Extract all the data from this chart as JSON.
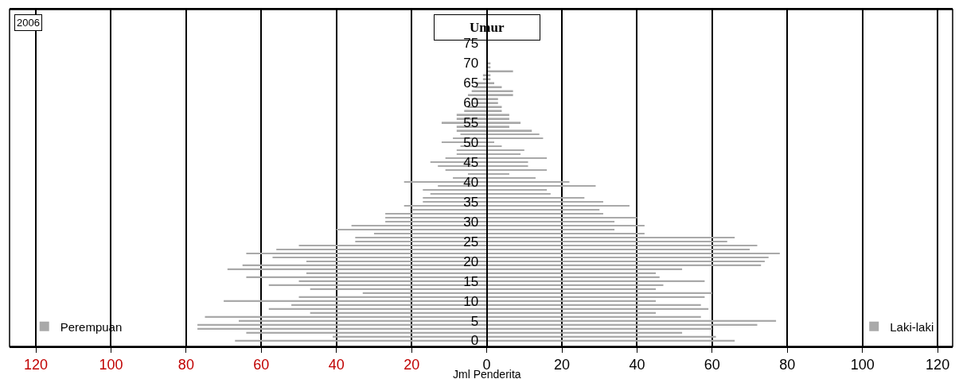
{
  "chart_data": {
    "type": "bar",
    "orientation": "horizontal",
    "stacked": true,
    "title": "2006",
    "ylabel": "Umur",
    "xlabel": "Jml Penderita",
    "categories": [
      null,
      null,
      "75",
      null,
      null,
      null,
      null,
      "70",
      null,
      null,
      null,
      null,
      "65",
      null,
      null,
      null,
      null,
      "60",
      null,
      null,
      null,
      null,
      "55",
      null,
      null,
      null,
      null,
      "50",
      null,
      null,
      null,
      null,
      "45",
      null,
      null,
      null,
      null,
      "40",
      null,
      null,
      null,
      null,
      "35",
      null,
      null,
      null,
      null,
      "30",
      null,
      null,
      null,
      null,
      "25",
      null,
      null,
      null,
      null,
      "20",
      null,
      null,
      null,
      null,
      "15",
      null,
      null,
      null,
      null,
      "10",
      null,
      null,
      null,
      null,
      "5",
      null,
      null,
      null,
      null,
      "0"
    ],
    "series": [
      {
        "name": "Perempuan",
        "color": "#a9a9a9",
        "values": [
          null,
          null,
          null,
          null,
          null,
          null,
          null,
          null,
          null,
          null,
          -1,
          -1,
          -3,
          -3,
          -4,
          -5,
          -4,
          -4,
          -5,
          -6,
          -8,
          -8,
          -12,
          -8,
          -8,
          -7,
          -9,
          -12,
          -7,
          -8,
          -8,
          -11,
          -15,
          -13,
          -11,
          -5,
          -9,
          -22,
          -13,
          -17,
          -15,
          -17,
          -17,
          -22,
          -20,
          -27,
          -27,
          -27,
          -36,
          -40,
          -30,
          -35,
          -35,
          -50,
          -56,
          -64,
          -57,
          -48,
          -65,
          -69,
          -48,
          -64,
          -50,
          -58,
          -47,
          -33,
          -50,
          -70,
          -52,
          -58,
          -47,
          -75,
          -66,
          -77,
          -77,
          -64,
          -41,
          -67
        ]
      },
      {
        "name": "Laki-laki",
        "color": "#a9a9a9",
        "values": [
          null,
          null,
          null,
          null,
          null,
          null,
          null,
          1,
          1,
          7,
          1,
          1,
          2,
          4,
          7,
          7,
          3,
          3,
          4,
          4,
          6,
          6,
          9,
          6,
          12,
          14,
          15,
          2,
          4,
          10,
          9,
          16,
          11,
          11,
          16,
          6,
          13,
          22,
          29,
          16,
          17,
          26,
          31,
          38,
          30,
          31,
          40,
          34,
          42,
          34,
          42,
          66,
          64,
          72,
          70,
          78,
          75,
          74,
          73,
          52,
          45,
          46,
          58,
          47,
          45,
          60,
          58,
          45,
          57,
          59,
          45,
          57,
          77,
          72,
          60,
          52,
          61,
          66
        ]
      }
    ],
    "xlim": [
      -127,
      124
    ],
    "xticks": [
      {
        "value": -120,
        "label": "120"
      },
      {
        "value": -100,
        "label": "100"
      },
      {
        "value": -80,
        "label": "80"
      },
      {
        "value": -60,
        "label": "60"
      },
      {
        "value": -40,
        "label": "40"
      },
      {
        "value": -20,
        "label": "20"
      },
      0,
      20,
      40,
      60,
      80,
      100,
      120
    ],
    "grid": "x",
    "legend": "bottom"
  }
}
